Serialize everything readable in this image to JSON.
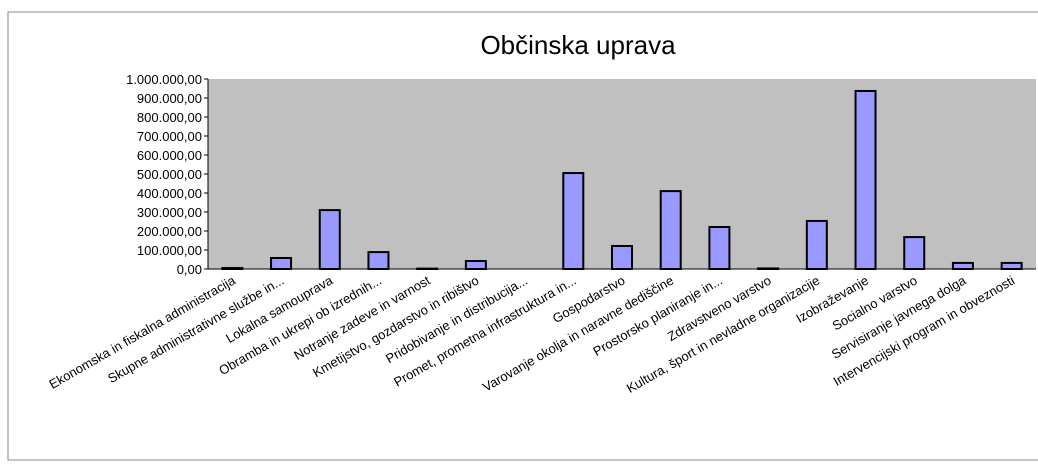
{
  "chart_data": {
    "type": "bar",
    "title": "Občinska uprava",
    "categories": [
      "Ekonomska in fiskalna administracija",
      "Skupne administrativne službe in...",
      "Lokalna samouprava",
      "Obramba in ukrepi ob izrednih...",
      "Notranje zadeve in varnost",
      "Kmetijstvo, gozdarstvo in ribištvo",
      "Pridobivanje in distribucija...",
      "Promet, prometna infrastruktura in...",
      "Gospodarstvo",
      "Varovanje okolja in naravne dediščine",
      "Prostorsko planiranje in...",
      "Zdravstveno varstvo",
      "Kultura, šport in nevladne organizacije",
      "Izobraževanje",
      "Socialno varstvo",
      "Servisiranje javnega dolga",
      "Intervencijski program in obveznosti"
    ],
    "values": [
      5000,
      58000,
      310000,
      89000,
      2000,
      42000,
      0,
      505000,
      121000,
      410000,
      221000,
      3000,
      253000,
      937000,
      168000,
      32000,
      32000
    ],
    "color": "#9999ff",
    "plot_background": "#c0c0c0",
    "ylim": [
      0,
      1000000
    ],
    "yticks": [
      {
        "value": 0,
        "label": "0,00"
      },
      {
        "value": 100000,
        "label": "100.000,00"
      },
      {
        "value": 200000,
        "label": "200.000,00"
      },
      {
        "value": 300000,
        "label": "300.000,00"
      },
      {
        "value": 400000,
        "label": "400.000,00"
      },
      {
        "value": 500000,
        "label": "500.000,00"
      },
      {
        "value": 600000,
        "label": "600.000,00"
      },
      {
        "value": 700000,
        "label": "700.000,00"
      },
      {
        "value": 800000,
        "label": "800.000,00"
      },
      {
        "value": 900000,
        "label": "900.000,00"
      },
      {
        "value": 1000000,
        "label": "1.000.000,00"
      }
    ],
    "grid": false
  }
}
